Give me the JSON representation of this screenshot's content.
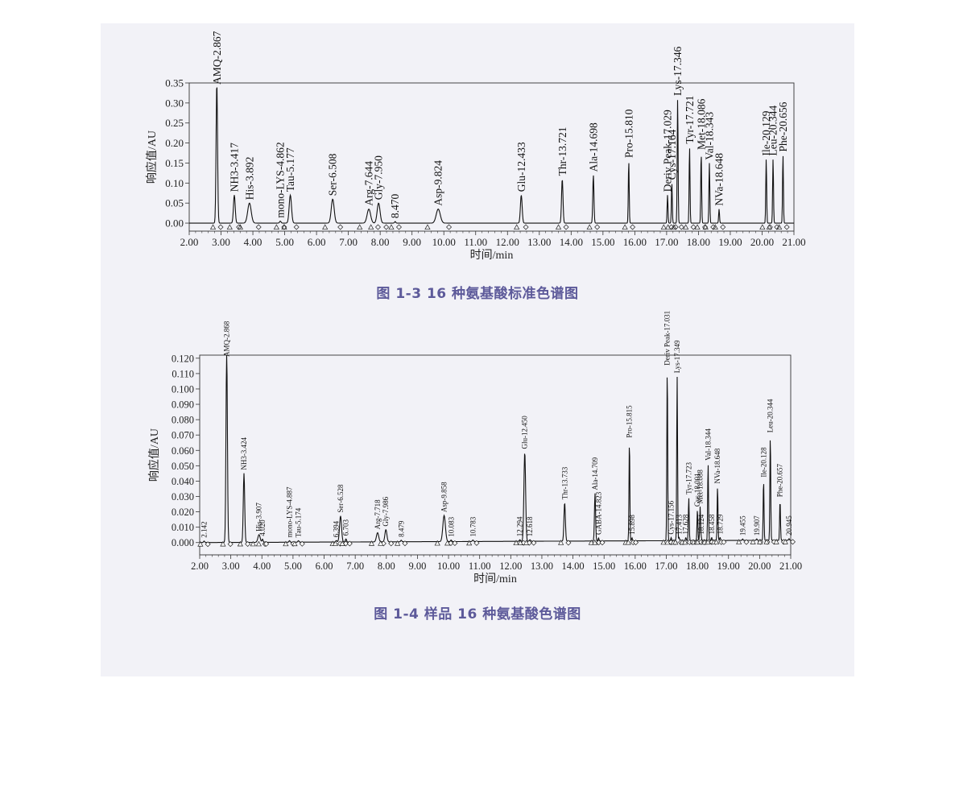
{
  "figures": [
    {
      "caption": "图 1-3 16 种氨基酸标准色谱图"
    },
    {
      "caption": "图 1-4 样品 16 种氨基酸色谱图"
    }
  ],
  "chart_data": [
    {
      "type": "line",
      "title": "",
      "xlabel": "时间/min",
      "ylabel": "响应值/AU",
      "xlim": [
        2.0,
        21.0
      ],
      "ylim": [
        -0.02,
        0.35
      ],
      "xticks": [
        "2.00",
        "3.00",
        "4.00",
        "5.00",
        "6.00",
        "7.00",
        "8.00",
        "9.00",
        "10.00",
        "11.00",
        "12.00",
        "13.00",
        "14.00",
        "15.00",
        "16.00",
        "17.00",
        "18.00",
        "19.00",
        "20.00",
        "21.00"
      ],
      "yticks": [
        "0.00",
        "0.05",
        "0.10",
        "0.15",
        "0.20",
        "0.25",
        "0.30",
        "0.35"
      ],
      "grid": false,
      "peaks": [
        {
          "label": "AMQ-2.867",
          "rt": 2.867,
          "height": 0.35,
          "width": 0.05
        },
        {
          "label": "NH3-3.417",
          "rt": 3.417,
          "height": 0.07,
          "width": 0.06
        },
        {
          "label": "His-3.892",
          "rt": 3.892,
          "height": 0.05,
          "width": 0.12
        },
        {
          "label": "mono-LYS-4.862",
          "rt": 4.862,
          "height": 0.005,
          "width": 0.05
        },
        {
          "label": "Tau-5.177",
          "rt": 5.177,
          "height": 0.07,
          "width": 0.08
        },
        {
          "label": "Ser-6.508",
          "rt": 6.508,
          "height": 0.06,
          "width": 0.1
        },
        {
          "label": "Arg-7.644",
          "rt": 7.644,
          "height": 0.035,
          "width": 0.12
        },
        {
          "label": "Gly-7.950",
          "rt": 7.95,
          "height": 0.05,
          "width": 0.1
        },
        {
          "label": "8.470",
          "rt": 8.47,
          "height": 0.004,
          "width": 0.04
        },
        {
          "label": "Asp-9.824",
          "rt": 9.824,
          "height": 0.035,
          "width": 0.14
        },
        {
          "label": "Glu-12.433",
          "rt": 12.433,
          "height": 0.07,
          "width": 0.06
        },
        {
          "label": "Thr-13.721",
          "rt": 13.721,
          "height": 0.11,
          "width": 0.05
        },
        {
          "label": "Ala-14.698",
          "rt": 14.698,
          "height": 0.12,
          "width": 0.04
        },
        {
          "label": "Pro-15.810",
          "rt": 15.81,
          "height": 0.155,
          "width": 0.03
        },
        {
          "label": "Deriv Peak-17.029",
          "rt": 17.029,
          "height": 0.07,
          "width": 0.03
        },
        {
          "label": "Cys-17.164",
          "rt": 17.164,
          "height": 0.1,
          "width": 0.03
        },
        {
          "label": "Lys-17.346",
          "rt": 17.346,
          "height": 0.31,
          "width": 0.03
        },
        {
          "label": "Tyr-17.721",
          "rt": 17.721,
          "height": 0.19,
          "width": 0.03
        },
        {
          "label": "Met-18.086",
          "rt": 18.086,
          "height": 0.175,
          "width": 0.03
        },
        {
          "label": "Val-18.343",
          "rt": 18.343,
          "height": 0.15,
          "width": 0.03
        },
        {
          "label": "NVa-18.648",
          "rt": 18.648,
          "height": 0.035,
          "width": 0.03
        },
        {
          "label": "Ile-20.129",
          "rt": 20.129,
          "height": 0.16,
          "width": 0.03
        },
        {
          "label": "Leu-20.344",
          "rt": 20.344,
          "height": 0.16,
          "width": 0.03
        },
        {
          "label": "Phe-20.656",
          "rt": 20.656,
          "height": 0.17,
          "width": 0.03
        }
      ]
    },
    {
      "type": "line",
      "title": "",
      "xlabel": "时间/min",
      "ylabel": "响应值/AU",
      "xlim": [
        2.0,
        21.0
      ],
      "ylim": [
        -0.008,
        0.122
      ],
      "xticks": [
        "2.00",
        "3.00",
        "4.00",
        "5.00",
        "6.00",
        "7.00",
        "8.00",
        "9.00",
        "10.00",
        "11.00",
        "12.00",
        "13.00",
        "14.00",
        "15.00",
        "16.00",
        "17.00",
        "18.00",
        "19.00",
        "20.00",
        "21.00"
      ],
      "yticks": [
        "0.000",
        "0.010",
        "0.020",
        "0.030",
        "0.040",
        "0.050",
        "0.060",
        "0.070",
        "0.080",
        "0.090",
        "0.100",
        "0.110",
        "0.120"
      ],
      "grid": false,
      "peaks": [
        {
          "label": "2.142",
          "rt": 2.142,
          "height": 0.001,
          "width": 0.04
        },
        {
          "label": "AMQ-2.868",
          "rt": 2.868,
          "height": 0.125,
          "width": 0.05
        },
        {
          "label": "NH3-3.424",
          "rt": 3.424,
          "height": 0.045,
          "width": 0.05
        },
        {
          "label": "His-3.907",
          "rt": 3.907,
          "height": 0.005,
          "width": 0.08
        },
        {
          "label": "4.020",
          "rt": 4.02,
          "height": 0.002,
          "width": 0.04
        },
        {
          "label": "mono-LYS-4.887",
          "rt": 4.887,
          "height": 0.001,
          "width": 0.04
        },
        {
          "label": "Tau-5.174",
          "rt": 5.174,
          "height": 0.001,
          "width": 0.04
        },
        {
          "label": "6.394",
          "rt": 6.394,
          "height": 0.001,
          "width": 0.04
        },
        {
          "label": "Ser-6.528",
          "rt": 6.528,
          "height": 0.017,
          "width": 0.07
        },
        {
          "label": "6.703",
          "rt": 6.703,
          "height": 0.002,
          "width": 0.04
        },
        {
          "label": "Arg-7.718",
          "rt": 7.718,
          "height": 0.006,
          "width": 0.08
        },
        {
          "label": "Gly-7.986",
          "rt": 7.986,
          "height": 0.008,
          "width": 0.07
        },
        {
          "label": "8.479",
          "rt": 8.479,
          "height": 0.001,
          "width": 0.04
        },
        {
          "label": "Asp-9.858",
          "rt": 9.858,
          "height": 0.017,
          "width": 0.09
        },
        {
          "label": "10.083",
          "rt": 10.083,
          "height": 0.001,
          "width": 0.04
        },
        {
          "label": "10.783",
          "rt": 10.783,
          "height": 0.001,
          "width": 0.04
        },
        {
          "label": "12.294",
          "rt": 12.294,
          "height": 0.001,
          "width": 0.04
        },
        {
          "label": "Glu-12.450",
          "rt": 12.45,
          "height": 0.058,
          "width": 0.06
        },
        {
          "label": "12.618",
          "rt": 12.618,
          "height": 0.001,
          "width": 0.04
        },
        {
          "label": "Thr-13.733",
          "rt": 13.733,
          "height": 0.025,
          "width": 0.05
        },
        {
          "label": "Ala-14.709",
          "rt": 14.709,
          "height": 0.031,
          "width": 0.04
        },
        {
          "label": "GABA-14.823",
          "rt": 14.823,
          "height": 0.002,
          "width": 0.03
        },
        {
          "label": "Pro-15.815",
          "rt": 15.815,
          "height": 0.065,
          "width": 0.03
        },
        {
          "label": "15.898",
          "rt": 15.898,
          "height": 0.002,
          "width": 0.03
        },
        {
          "label": "Deriv Peak-17.031",
          "rt": 17.031,
          "height": 0.112,
          "width": 0.03
        },
        {
          "label": "Cys-17.156",
          "rt": 17.156,
          "height": 0.002,
          "width": 0.03
        },
        {
          "label": "Lys-17.349",
          "rt": 17.349,
          "height": 0.107,
          "width": 0.03
        },
        {
          "label": "17.413",
          "rt": 17.413,
          "height": 0.002,
          "width": 0.03
        },
        {
          "label": "17.628",
          "rt": 17.628,
          "height": 0.002,
          "width": 0.03
        },
        {
          "label": "Tyr-17.723",
          "rt": 17.723,
          "height": 0.028,
          "width": 0.03
        },
        {
          "label": "Cys-18.001",
          "rt": 18.001,
          "height": 0.02,
          "width": 0.03
        },
        {
          "label": "Met-18.088",
          "rt": 18.088,
          "height": 0.022,
          "width": 0.03
        },
        {
          "label": "18.124",
          "rt": 18.124,
          "height": 0.002,
          "width": 0.03
        },
        {
          "label": "Val-18.344",
          "rt": 18.344,
          "height": 0.05,
          "width": 0.03
        },
        {
          "label": "18.458",
          "rt": 18.458,
          "height": 0.002,
          "width": 0.03
        },
        {
          "label": "NVa-18.648",
          "rt": 18.648,
          "height": 0.035,
          "width": 0.03
        },
        {
          "label": "18.729",
          "rt": 18.729,
          "height": 0.002,
          "width": 0.03
        },
        {
          "label": "19.455",
          "rt": 19.455,
          "height": 0.001,
          "width": 0.03
        },
        {
          "label": "19.907",
          "rt": 19.907,
          "height": 0.001,
          "width": 0.03
        },
        {
          "label": "Ile-20.128",
          "rt": 20.128,
          "height": 0.039,
          "width": 0.03
        },
        {
          "label": "Leu-20.344",
          "rt": 20.344,
          "height": 0.068,
          "width": 0.03
        },
        {
          "label": "Phe-20.657",
          "rt": 20.657,
          "height": 0.026,
          "width": 0.03
        },
        {
          "label": "20.945",
          "rt": 20.945,
          "height": 0.001,
          "width": 0.03
        }
      ]
    }
  ]
}
